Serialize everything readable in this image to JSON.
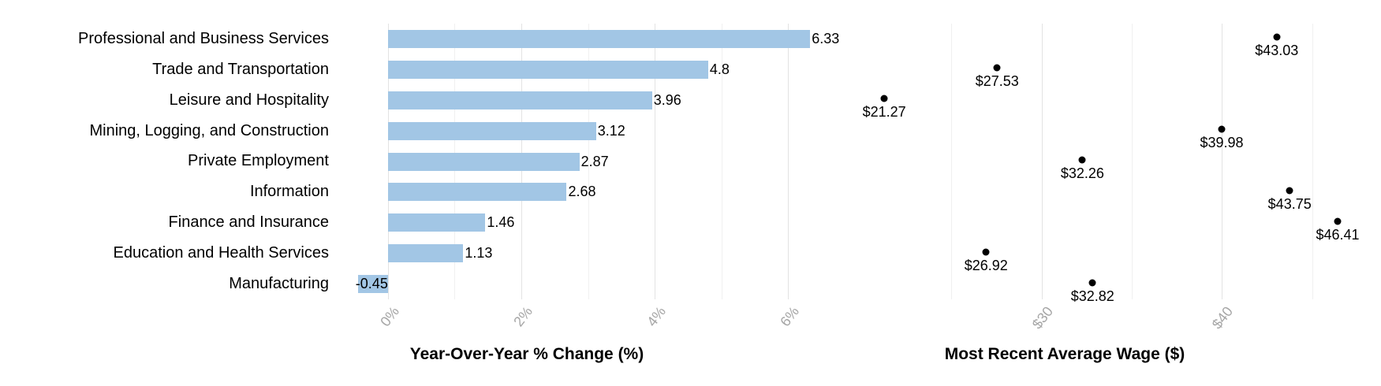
{
  "chart_data": [
    {
      "type": "bar",
      "orientation": "horizontal",
      "xlabel": "Year-Over-Year % Change (%)",
      "categories": [
        "Professional and Business Services",
        "Trade and Transportation",
        "Leisure and Hospitality",
        "Mining, Logging, and Construction",
        "Private Employment",
        "Information",
        "Finance and Insurance",
        "Education and Health Services",
        "Manufacturing"
      ],
      "values": [
        6.33,
        4.8,
        3.96,
        3.12,
        2.87,
        2.68,
        1.46,
        1.13,
        -0.45
      ],
      "data_labels": [
        "6.33",
        "4.8",
        "3.96",
        "3.12",
        "2.87",
        "2.68",
        "1.46",
        "1.13",
        "-0.45"
      ],
      "xlim": [
        -0.79,
        6.67
      ],
      "xticks": {
        "labels": [
          "0%",
          "2%",
          "4%",
          "6%"
        ],
        "values": [
          0,
          2,
          4,
          6
        ]
      },
      "minor_ticks": [
        1,
        3,
        5
      ],
      "grid": true,
      "bar_color": "#a2c6e5",
      "legend": "none"
    },
    {
      "type": "scatter",
      "xlabel": "Most Recent Average Wage ($)",
      "categories": [
        "Professional and Business Services",
        "Trade and Transportation",
        "Leisure and Hospitality",
        "Mining, Logging, and Construction",
        "Private Employment",
        "Information",
        "Finance and Insurance",
        "Education and Health Services",
        "Manufacturing"
      ],
      "values": [
        43.03,
        27.53,
        21.27,
        39.98,
        32.26,
        43.75,
        46.41,
        26.92,
        32.82
      ],
      "data_labels": [
        "$43.03",
        "$27.53",
        "$21.27",
        "$39.98",
        "$32.26",
        "$43.75",
        "$46.41",
        "$26.92",
        "$32.82"
      ],
      "xlim": [
        20.26,
        47.72
      ],
      "xticks": {
        "labels": [
          "$30",
          "$40"
        ],
        "values": [
          30,
          40
        ]
      },
      "minor_ticks": [
        25,
        35,
        45
      ],
      "grid": true,
      "dot_color": "#000000",
      "legend": "none"
    }
  ],
  "styles": {
    "background": "#ffffff",
    "bar_color": "#a2c6e5",
    "dot_color": "#000000",
    "tick_label_color": "#a6a6a6",
    "text_color": "#000000",
    "major_grid_color": "#e3e3e3",
    "minor_grid_color": "#f0f0f0"
  }
}
